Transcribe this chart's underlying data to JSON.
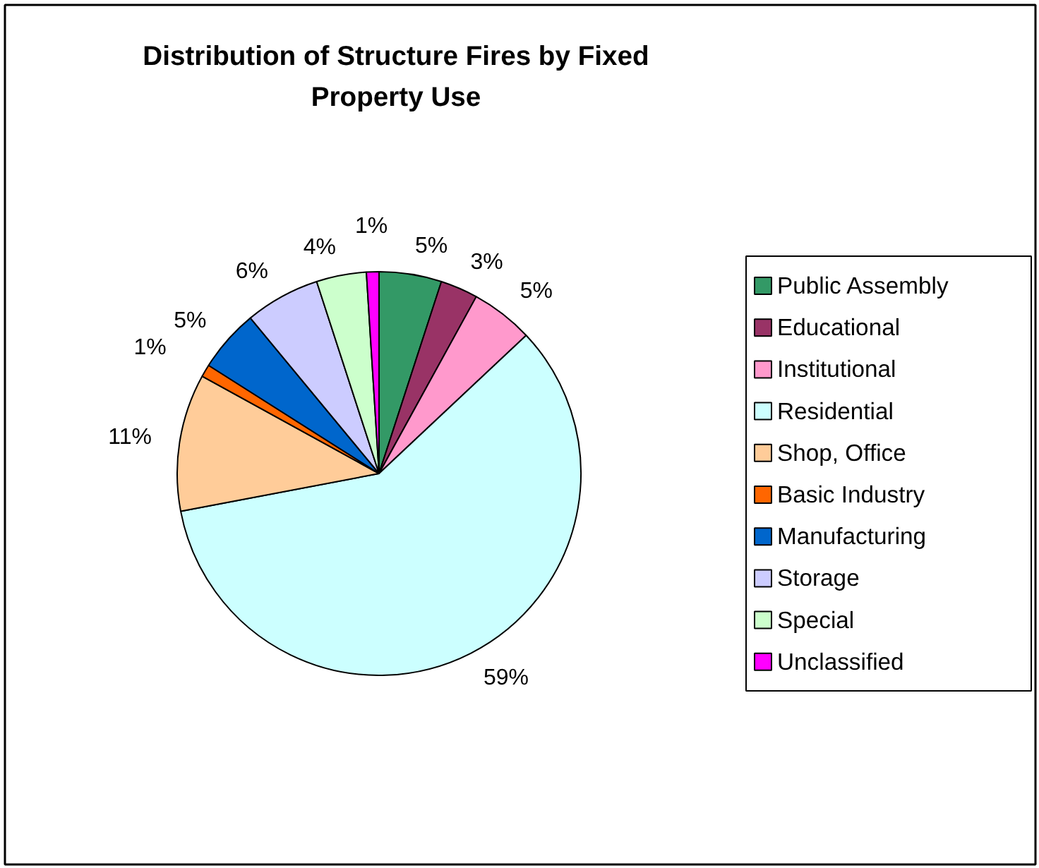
{
  "chart_data": {
    "type": "pie",
    "title": "Distribution of Structure Fires by Fixed Property Use",
    "categories": [
      "Public Assembly",
      "Educational",
      "Institutional",
      "Residential",
      "Shop, Office",
      "Basic Industry",
      "Manufacturing",
      "Storage",
      "Special",
      "Unclassified"
    ],
    "values": [
      5,
      3,
      5,
      59,
      11,
      1,
      5,
      6,
      4,
      1
    ],
    "value_labels": [
      "5%",
      "3%",
      "5%",
      "59%",
      "11%",
      "1%",
      "5%",
      "6%",
      "4%",
      "1%"
    ],
    "colors": [
      "#339966",
      "#993366",
      "#ff99cc",
      "#ccffff",
      "#ffcc99",
      "#ff6600",
      "#0066cc",
      "#ccccff",
      "#ccffcc",
      "#ff00ff"
    ],
    "legend": "right"
  }
}
